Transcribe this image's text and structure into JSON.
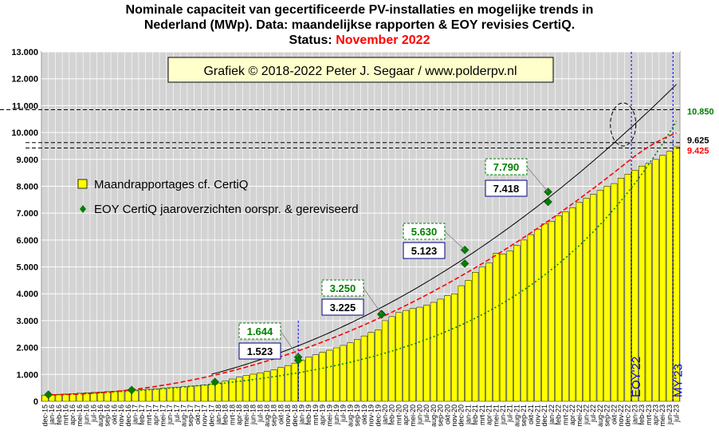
{
  "title": {
    "line1": "Nominale capaciteit van gecertificeerde PV-installaties en mogelijke trends in",
    "line2": "Nederland (MWp). Data: maandelijkse rapporten & EOY revisies CertiQ.",
    "status_label": "Status: ",
    "status_value": "November 2022"
  },
  "copyright": "Grafiek © 2018-2022 Peter J. Segaar / www.polderpv.nl",
  "colors": {
    "plot_bg": "#d3d3d3",
    "bar_fill": "#ffff00",
    "bar_edge": "#000000",
    "eoy_marker": "#008000",
    "red_trend": "#ff0000",
    "green_trend": "#008000",
    "black_trend": "#000000",
    "marker_line": "#0000ff",
    "copyright_box": "#ffffcc"
  },
  "chart_data": {
    "type": "bar",
    "ylim": [
      0,
      13000
    ],
    "yticks": [
      "0",
      "1.000",
      "2.000",
      "3.000",
      "4.000",
      "5.000",
      "6.000",
      "7.000",
      "8.000",
      "9.000",
      "10.000",
      "11.000",
      "12.000",
      "13.000"
    ],
    "grid": true,
    "categories": [
      "dec-15",
      "jan-16",
      "feb-16",
      "mrt-16",
      "apr-16",
      "mei-16",
      "jun-16",
      "jul-16",
      "aug-16",
      "sep-16",
      "okt-16",
      "nov-16",
      "dec-16",
      "jan-17",
      "feb-17",
      "mrt-17",
      "apr-17",
      "mei-17",
      "jun-17",
      "jul-17",
      "aug-17",
      "sep-17",
      "okt-17",
      "nov-17",
      "dec-17",
      "jan-18",
      "feb-18",
      "mrt-18",
      "apr-18",
      "mei-18",
      "jun-18",
      "jul-18",
      "aug-18",
      "sep-18",
      "okt-18",
      "nov-18",
      "dec-18",
      "jan-19",
      "feb-19",
      "mrt-19",
      "apr-19",
      "mei-19",
      "jun-19",
      "jul-19",
      "aug-19",
      "sep-19",
      "okt-19",
      "nov-19",
      "dec-19",
      "jan-20",
      "feb-20",
      "mrt-20",
      "apr-20",
      "mei-20",
      "jun-20",
      "jul-20",
      "aug-20",
      "sep-20",
      "okt-20",
      "nov-20",
      "dec-20",
      "jan-21",
      "feb-21",
      "mrt-21",
      "apr-21",
      "mei-21",
      "jun-21",
      "jul-21",
      "aug-21",
      "sep-21",
      "okt-21",
      "nov-21",
      "dec-21",
      "jan-22",
      "feb-22",
      "mrt-22",
      "apr-22",
      "mei-22",
      "jun-22",
      "jul-22",
      "aug-22",
      "sep-22",
      "okt-22",
      "nov-22",
      "dec-22",
      "jan-23",
      "feb-23",
      "mrt-23",
      "apr-23",
      "mei-23",
      "jun-23",
      "jul-23"
    ],
    "series": [
      {
        "name": "Maandrapportages cf. CertiQ",
        "values": [
          230,
          240,
          255,
          270,
          285,
          300,
          315,
          330,
          345,
          360,
          375,
          390,
          400,
          415,
          430,
          445,
          465,
          485,
          505,
          525,
          545,
          565,
          585,
          605,
          640,
          680,
          760,
          830,
          900,
          960,
          1010,
          1060,
          1110,
          1170,
          1260,
          1330,
          1420,
          1530,
          1640,
          1730,
          1820,
          1900,
          1990,
          2080,
          2180,
          2300,
          2430,
          2560,
          2650,
          3000,
          3150,
          3300,
          3380,
          3450,
          3500,
          3580,
          3680,
          3800,
          3930,
          4000,
          4300,
          4500,
          4800,
          5000,
          5150,
          5500,
          5480,
          5600,
          5800,
          6000,
          6200,
          6400,
          6600,
          6700,
          6900,
          7050,
          7200,
          7400,
          7550,
          7700,
          7850,
          8000,
          8100,
          8300,
          8450,
          8600,
          8750,
          8850,
          9000,
          9150,
          9300,
          9470
        ]
      },
      {
        "name": "EOY CertiQ jaaroverzichten oorspr. & gereviseerd",
        "points": [
          [
            "dec-15",
            250
          ],
          [
            "dec-16",
            420
          ],
          [
            "dec-17",
            720
          ],
          [
            "dec-18",
            1644
          ],
          [
            "dec-18",
            1523
          ],
          [
            "dec-19",
            3250
          ],
          [
            "dec-19",
            3225
          ],
          [
            "dec-20",
            5630
          ],
          [
            "dec-20",
            5123
          ],
          [
            "dec-21",
            7790
          ],
          [
            "dec-21",
            7418
          ]
        ]
      }
    ],
    "legend": [
      "Maandrapportages cf. CertiQ",
      "EOY CertiQ jaaroverzichten oorspr. & gereviseerd"
    ],
    "annotations": {
      "eoy_pairs": [
        {
          "month": "dec-18",
          "original": "1.644",
          "revised": "1.523"
        },
        {
          "month": "dec-19",
          "original": "3.250",
          "revised": "3.225"
        },
        {
          "month": "dec-20",
          "original": "5.630",
          "revised": "5.123"
        },
        {
          "month": "dec-21",
          "original": "7.790",
          "revised": "7.418"
        }
      ],
      "right_values": [
        {
          "value": 10850,
          "label": "10.850",
          "color": "#008000"
        },
        {
          "value": 9625,
          "label": "9.625",
          "color": "#000000"
        },
        {
          "value": 9425,
          "label": "9.425",
          "color": "#ff0000"
        }
      ],
      "markers": [
        {
          "label": "EOY'22",
          "month": "dec-22"
        },
        {
          "label": "MY'23",
          "month": "jun-23"
        }
      ]
    }
  }
}
